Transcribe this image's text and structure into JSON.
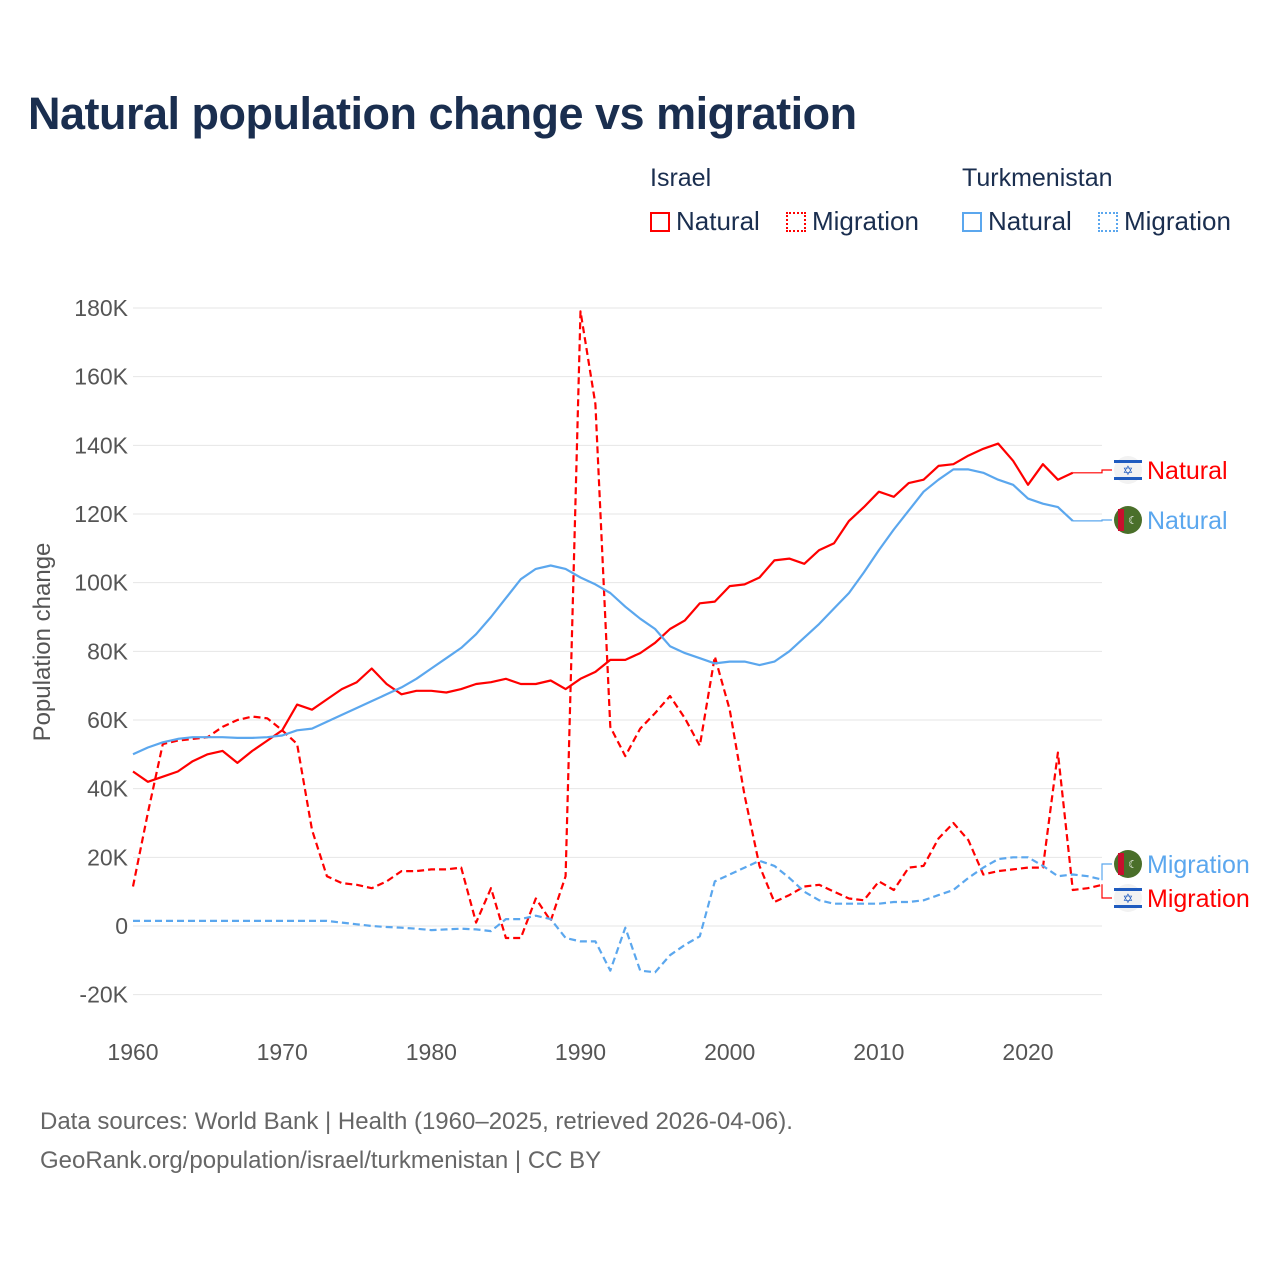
{
  "title": "Natural population change vs migration",
  "legend": {
    "groups": [
      {
        "country": "Israel",
        "items": [
          {
            "label": "Natural",
            "style": "solid",
            "color": "#ff0000"
          },
          {
            "label": "Migration",
            "style": "dotted",
            "color": "#ff0000"
          }
        ]
      },
      {
        "country": "Turkmenistan",
        "items": [
          {
            "label": "Natural",
            "style": "solid",
            "color": "#5ba7ee"
          },
          {
            "label": "Migration",
            "style": "dotted",
            "color": "#5ba7ee"
          }
        ]
      }
    ]
  },
  "footer": {
    "line1": "Data sources: World Bank | Health (1960–2025, retrieved 2026-04-06).",
    "line2": "GeoRank.org/population/israel/turkmenistan | CC BY"
  },
  "chart_data": {
    "type": "line",
    "title": "Natural population change vs migration",
    "xlabel": "",
    "ylabel": "Population change",
    "xlim": [
      1960,
      2025
    ],
    "ylim": [
      -20000,
      180000
    ],
    "xticks": [
      1960,
      1970,
      1980,
      1990,
      2000,
      2010,
      2020
    ],
    "xtick_labels": [
      "1960",
      "1970",
      "1980",
      "1990",
      "2000",
      "2010",
      "2020"
    ],
    "yticks": [
      -20000,
      0,
      20000,
      40000,
      60000,
      80000,
      100000,
      120000,
      140000,
      160000,
      180000
    ],
    "ytick_labels": [
      "-20K",
      "0",
      "20K",
      "40K",
      "60K",
      "80K",
      "100K",
      "120K",
      "140K",
      "160K",
      "180K"
    ],
    "grid": true,
    "series": [
      {
        "name": "Israel Natural",
        "label": "Natural",
        "color": "#ff0000",
        "dash": false,
        "start": 1960,
        "values": [
          45,
          42,
          43.5,
          45,
          48,
          50,
          51,
          47.5,
          51,
          54,
          57,
          64.5,
          63,
          66,
          69,
          71,
          75,
          70.5,
          67.5,
          68.5,
          68.5,
          68,
          69,
          70.5,
          71,
          72,
          70.5,
          70.5,
          71.5,
          69,
          72,
          74,
          77.5,
          77.5,
          79.5,
          82.5,
          86.5,
          89,
          94,
          94.5,
          99,
          99.5,
          101.5,
          106.5,
          107,
          105.5,
          109.5,
          111.5,
          118,
          122,
          126.5,
          125,
          129,
          130,
          134,
          134.5,
          137,
          139,
          140.5,
          135.5,
          128.5,
          134.5,
          130,
          132
        ]
      },
      {
        "name": "Israel Migration",
        "label": "Migration",
        "color": "#ff0000",
        "dash": true,
        "start": 1960,
        "values": [
          11.5,
          33,
          53,
          54,
          54.5,
          55,
          58,
          60,
          61,
          60.5,
          57,
          53,
          28,
          14.5,
          12.5,
          12,
          11,
          13,
          16,
          16,
          16.5,
          16.5,
          17,
          1,
          11,
          -3.5,
          -3.5,
          8,
          1.5,
          14.5,
          179,
          152,
          58,
          49.5,
          57.5,
          62,
          67,
          60.5,
          52.5,
          78.5,
          63,
          38,
          17.5,
          7,
          9,
          11.5,
          12,
          10,
          8,
          7.5,
          13,
          10.5,
          17,
          17.5,
          25.5,
          30,
          25,
          15,
          16,
          16.5,
          17,
          17,
          50.5,
          10.5,
          11,
          12
        ]
      },
      {
        "name": "Turkmenistan Natural",
        "label": "Natural",
        "color": "#5ba7ee",
        "dash": false,
        "start": 1960,
        "values": [
          50,
          52,
          53.5,
          54.5,
          55,
          55,
          55,
          54.8,
          54.8,
          55,
          55.5,
          57,
          57.5,
          59.5,
          61.5,
          63.5,
          65.5,
          67.5,
          69.5,
          72,
          75,
          78,
          81,
          85,
          90,
          95.5,
          101,
          104,
          105,
          104,
          101.5,
          99.5,
          97,
          93,
          89.5,
          86.5,
          81.5,
          79.5,
          78,
          76.5,
          77,
          77,
          76,
          77,
          80,
          84,
          88,
          92.5,
          97,
          103,
          109.5,
          115.5,
          121,
          126.5,
          130,
          133,
          133,
          132,
          130,
          128.5,
          124.5,
          123,
          122,
          118
        ]
      },
      {
        "name": "Turkmenistan Migration",
        "label": "Migration",
        "color": "#5ba7ee",
        "dash": true,
        "start": 1960,
        "values": [
          1.5,
          1.5,
          1.5,
          1.5,
          1.5,
          1.5,
          1.5,
          1.5,
          1.5,
          1.5,
          1.5,
          1.5,
          1.5,
          1.5,
          1,
          0.5,
          0,
          -0.3,
          -0.5,
          -0.8,
          -1.2,
          -1,
          -0.8,
          -1,
          -1.5,
          2,
          2,
          3,
          2,
          -3.5,
          -4.5,
          -4.5,
          -13,
          -0.5,
          -13,
          -13.5,
          -8.5,
          -5.5,
          -3,
          13,
          15,
          17,
          19,
          17.5,
          14,
          10,
          7.5,
          6.5,
          6.5,
          6.5,
          6.5,
          7,
          7,
          7.5,
          9,
          10.5,
          14,
          17,
          19.5,
          20,
          20,
          17.5,
          14.5,
          15,
          14.5,
          13.5
        ]
      }
    ],
    "value_units": "thousands"
  }
}
